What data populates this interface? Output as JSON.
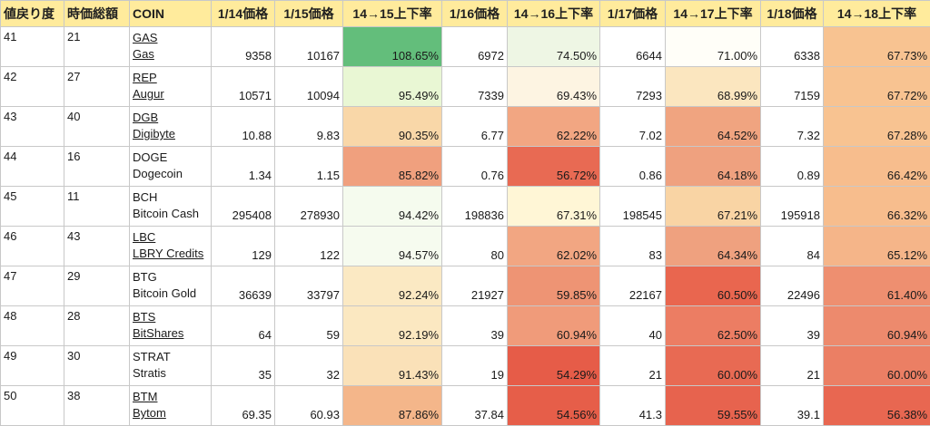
{
  "headers": [
    "値戻り度",
    "時価総額",
    "COIN",
    "1/14価格",
    "1/15価格",
    "14→15上下率",
    "1/16価格",
    "14→16上下率",
    "1/17価格",
    "14→17上下率",
    "1/18価格",
    "14→18上下率"
  ],
  "rows": [
    {
      "rank": "41",
      "mcap": "21",
      "symbol": "GAS",
      "name": "Gas",
      "linked": true,
      "p14": "9358",
      "p15": "10167",
      "r15": "108.65%",
      "p16": "6972",
      "r16": "74.50%",
      "p17": "6644",
      "r17": "71.00%",
      "p18": "6338",
      "r18": "67.73%",
      "c15": "#63be7b",
      "c16": "#eef6e4",
      "c17": "#fffef8",
      "c18": "#f8c391"
    },
    {
      "rank": "42",
      "mcap": "27",
      "symbol": "REP",
      "name": "Augur",
      "linked": true,
      "p14": "10571",
      "p15": "10094",
      "r15": "95.49%",
      "p16": "7339",
      "r16": "69.43%",
      "p17": "7293",
      "r17": "68.99%",
      "p18": "7159",
      "r18": "67.72%",
      "c15": "#e9f7d4",
      "c16": "#fdf4e2",
      "c17": "#fbe6bf",
      "c18": "#f8c391"
    },
    {
      "rank": "43",
      "mcap": "40",
      "symbol": "DGB",
      "name": "Digibyte",
      "linked": true,
      "p14": "10.88",
      "p15": "9.83",
      "r15": "90.35%",
      "p16": "6.77",
      "r16": "62.22%",
      "p17": "7.02",
      "r17": "64.52%",
      "p18": "7.32",
      "r18": "67.28%",
      "c15": "#f9d7a8",
      "c16": "#f2a682",
      "c17": "#f0a480",
      "c18": "#f8c391"
    },
    {
      "rank": "44",
      "mcap": "16",
      "symbol": "DOGE",
      "name": "Dogecoin",
      "linked": false,
      "p14": "1.34",
      "p15": "1.15",
      "r15": "85.82%",
      "p16": "0.76",
      "r16": "56.72%",
      "p17": "0.86",
      "r17": "64.18%",
      "p18": "0.89",
      "r18": "66.42%",
      "c15": "#f0a07e",
      "c16": "#e86a53",
      "c17": "#efa17f",
      "c18": "#f7bd8d"
    },
    {
      "rank": "45",
      "mcap": "11",
      "symbol": "BCH",
      "name": "Bitcoin Cash",
      "linked": false,
      "p14": "295408",
      "p15": "278930",
      "r15": "94.42%",
      "p16": "198836",
      "r16": "67.31%",
      "p17": "198545",
      "r17": "67.21%",
      "p18": "195918",
      "r18": "66.32%",
      "c15": "#f5fbee",
      "c16": "#fff6d6",
      "c17": "#f9d4a4",
      "c18": "#f7bd8d"
    },
    {
      "rank": "46",
      "mcap": "43",
      "symbol": "LBC",
      "name": "LBRY Credits",
      "linked": true,
      "p14": "129",
      "p15": "122",
      "r15": "94.57%",
      "p16": "80",
      "r16": "62.02%",
      "p17": "83",
      "r17": "64.34%",
      "p18": "84",
      "r18": "65.12%",
      "c15": "#f6fbef",
      "c16": "#f2a682",
      "c17": "#efa17f",
      "c18": "#f5b589"
    },
    {
      "rank": "47",
      "mcap": "29",
      "symbol": "BTG",
      "name": "Bitcoin Gold",
      "linked": false,
      "p14": "36639",
      "p15": "33797",
      "r15": "92.24%",
      "p16": "21927",
      "r16": "59.85%",
      "p17": "22167",
      "r17": "60.50%",
      "p18": "22496",
      "r18": "61.40%",
      "c15": "#fbe9c3",
      "c16": "#ee9474",
      "c17": "#e9664f",
      "c18": "#ee8f70"
    },
    {
      "rank": "48",
      "mcap": "28",
      "symbol": "BTS",
      "name": "BitShares",
      "linked": true,
      "p14": "64",
      "p15": "59",
      "r15": "92.19%",
      "p16": "39",
      "r16": "60.94%",
      "p17": "40",
      "r17": "62.50%",
      "p18": "39",
      "r18": "60.94%",
      "c15": "#fbe8c1",
      "c16": "#f09b7a",
      "c17": "#ec7d63",
      "c18": "#ed8a6d"
    },
    {
      "rank": "49",
      "mcap": "30",
      "symbol": "STRAT",
      "name": "Stratis",
      "linked": false,
      "p14": "35",
      "p15": "32",
      "r15": "91.43%",
      "p16": "19",
      "r16": "54.29%",
      "p17": "21",
      "r17": "60.00%",
      "p18": "21",
      "r18": "60.00%",
      "c15": "#fae1b8",
      "c16": "#e65c48",
      "c17": "#e86a53",
      "c18": "#eb7f64"
    },
    {
      "rank": "50",
      "mcap": "38",
      "symbol": "BTM",
      "name": "Bytom",
      "linked": true,
      "p14": "69.35",
      "p15": "60.93",
      "r15": "87.86%",
      "p16": "37.84",
      "r16": "54.56%",
      "p17": "41.3",
      "r17": "59.55%",
      "p18": "39.1",
      "r18": "56.38%",
      "c15": "#f4b68a",
      "c16": "#e65e49",
      "c17": "#e7634e",
      "c18": "#e86751"
    }
  ]
}
